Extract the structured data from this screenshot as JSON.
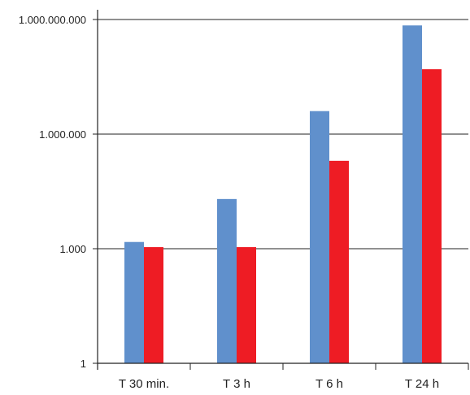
{
  "chart_data": {
    "type": "bar",
    "y_scale": "log",
    "ylim": [
      1,
      2000000000
    ],
    "yticks": [
      {
        "value": 1,
        "label": "1"
      },
      {
        "value": 1000,
        "label": "1.000"
      },
      {
        "value": 1000000,
        "label": "1.000.000"
      },
      {
        "value": 1000000000,
        "label": "1.000.000.000"
      }
    ],
    "categories": [
      "T 30 min.",
      "T 3 h",
      "T 6 h",
      "T 24 h"
    ],
    "series": [
      {
        "color": "#6090CC",
        "values": [
          1500,
          20000,
          4000000,
          700000000
        ]
      },
      {
        "color": "#EE1C24",
        "values": [
          1100,
          1100,
          200000,
          50000000
        ]
      }
    ],
    "grid": true,
    "legend": false
  }
}
